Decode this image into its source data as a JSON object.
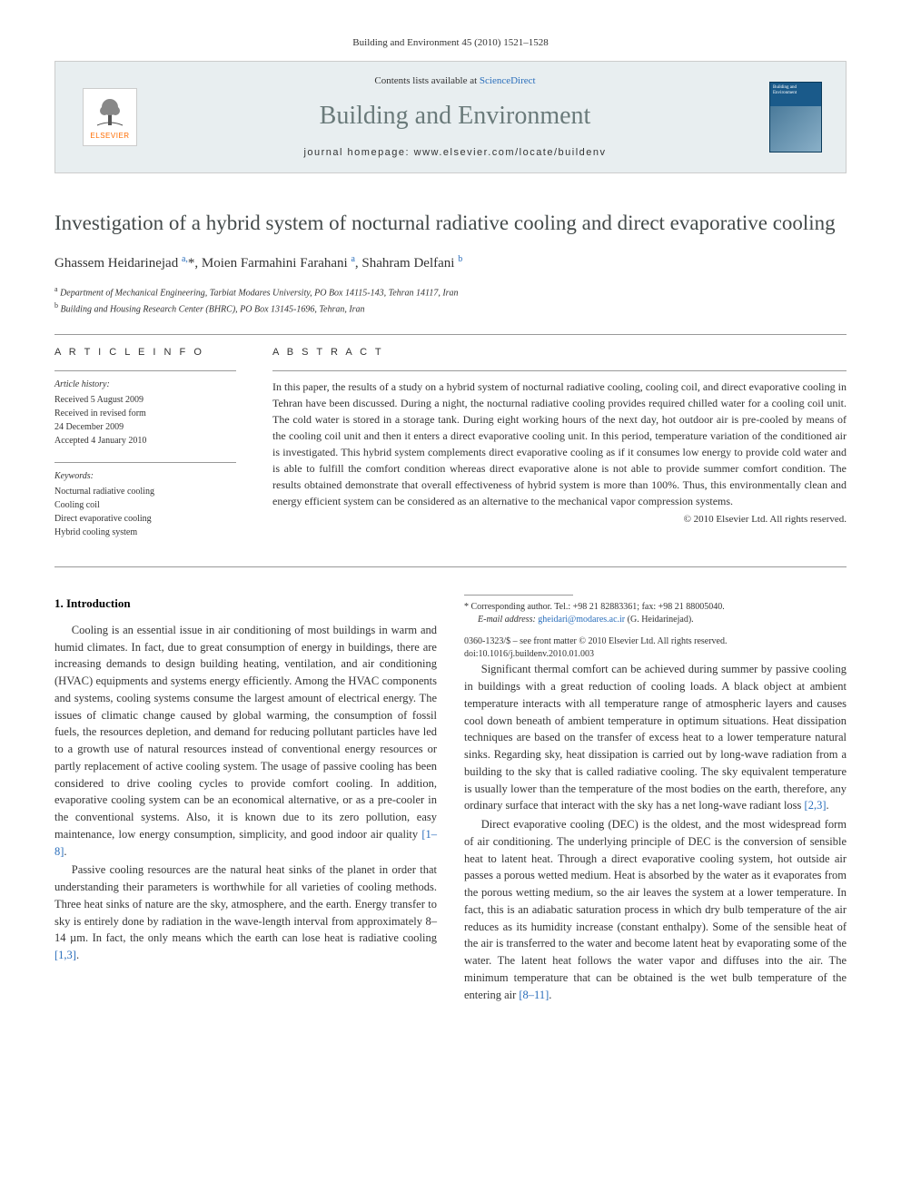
{
  "header_line": "Building and Environment 45 (2010) 1521–1528",
  "banner": {
    "contents_prefix": "Contents lists available at ",
    "contents_link": "ScienceDirect",
    "journal_name": "Building and Environment",
    "homepage_prefix": "journal homepage: ",
    "homepage_url": "www.elsevier.com/locate/buildenv",
    "publisher": "ELSEVIER",
    "cover_title": "Building and Environment"
  },
  "title": "Investigation of a hybrid system of nocturnal radiative cooling and direct evaporative cooling",
  "authors_html": "Ghassem Heidarinejad <sup>a,</sup>*, Moien Farmahini Farahani <sup>a</sup>, Shahram Delfani <sup>b</sup>",
  "affiliations": [
    {
      "sup": "a",
      "text": "Department of Mechanical Engineering, Tarbiat Modares University, PO Box 14115-143, Tehran 14117, Iran"
    },
    {
      "sup": "b",
      "text": "Building and Housing Research Center (BHRC), PO Box 13145-1696, Tehran, Iran"
    }
  ],
  "article_info": {
    "heading": "A R T I C L E   I N F O",
    "history_label": "Article history:",
    "history": [
      "Received 5 August 2009",
      "Received in revised form",
      "24 December 2009",
      "Accepted 4 January 2010"
    ],
    "keywords_label": "Keywords:",
    "keywords": [
      "Nocturnal radiative cooling",
      "Cooling coil",
      "Direct evaporative cooling",
      "Hybrid cooling system"
    ]
  },
  "abstract": {
    "heading": "A B S T R A C T",
    "text": "In this paper, the results of a study on a hybrid system of nocturnal radiative cooling, cooling coil, and direct evaporative cooling in Tehran have been discussed. During a night, the nocturnal radiative cooling provides required chilled water for a cooling coil unit. The cold water is stored in a storage tank. During eight working hours of the next day, hot outdoor air is pre-cooled by means of the cooling coil unit and then it enters a direct evaporative cooling unit. In this period, temperature variation of the conditioned air is investigated. This hybrid system complements direct evaporative cooling as if it consumes low energy to provide cold water and is able to fulfill the comfort condition whereas direct evaporative alone is not able to provide summer comfort condition. The results obtained demonstrate that overall effectiveness of hybrid system is more than 100%. Thus, this environmentally clean and energy efficient system can be considered as an alternative to the mechanical vapor compression systems.",
    "copyright": "© 2010 Elsevier Ltd. All rights reserved."
  },
  "body": {
    "section1_heading": "1. Introduction",
    "p1": "Cooling is an essential issue in air conditioning of most buildings in warm and humid climates. In fact, due to great consumption of energy in buildings, there are increasing demands to design building heating, ventilation, and air conditioning (HVAC) equipments and systems energy efficiently. Among the HVAC components and systems, cooling systems consume the largest amount of electrical energy. The issues of climatic change caused by global warming, the consumption of fossil fuels, the resources depletion, and demand for reducing pollutant particles have led to a growth use of natural resources instead of conventional energy resources or partly replacement of active cooling system. The usage of passive cooling has been considered to drive cooling cycles to provide comfort cooling. In addition, evaporative cooling system can be an economical alternative, or as a pre-cooler in the conventional systems. Also, it is known due to its zero pollution, easy maintenance, low energy consumption, simplicity, and good indoor air quality ",
    "p1_cite": "[1–8]",
    "p1_end": ".",
    "p2": "Passive cooling resources are the natural heat sinks of the planet in order that understanding their parameters is worthwhile for all varieties of cooling methods. Three heat sinks of nature are the sky, atmosphere, and the earth. Energy transfer to sky is entirely done by radiation in the wave-length interval from approximately 8–14 µm. In fact, the only means which the earth can lose heat is radiative cooling ",
    "p2_cite": "[1,3]",
    "p2_end": ".",
    "p3": "Significant thermal comfort can be achieved during summer by passive cooling in buildings with a great reduction of cooling loads. A black object at ambient temperature interacts with all temperature range of atmospheric layers and causes cool down beneath of ambient temperature in optimum situations. Heat dissipation techniques are based on the transfer of excess heat to a lower temperature natural sinks. Regarding sky, heat dissipation is carried out by long-wave radiation from a building to the sky that is called radiative cooling. The sky equivalent temperature is usually lower than the temperature of the most bodies on the earth, therefore, any ordinary surface that interact with the sky has a net long-wave radiant loss ",
    "p3_cite": "[2,3]",
    "p3_end": ".",
    "p4": "Direct evaporative cooling (DEC) is the oldest, and the most widespread form of air conditioning. The underlying principle of DEC is the conversion of sensible heat to latent heat. Through a direct evaporative cooling system, hot outside air passes a porous wetted medium. Heat is absorbed by the water as it evaporates from the porous wetting medium, so the air leaves the system at a lower temperature. In fact, this is an adiabatic saturation process in which dry bulb temperature of the air reduces as its humidity increase (constant enthalpy). Some of the sensible heat of the air is transferred to the water and become latent heat by evaporating some of the water. The latent heat follows the water vapor and diffuses into the air. The minimum temperature that can be obtained is the wet bulb temperature of the entering air ",
    "p4_cite": "[8–11]",
    "p4_end": "."
  },
  "footnote": {
    "corr": "* Corresponding author. Tel.: +98 21 82883361; fax: +98 21 88005040.",
    "email_label": "E-mail address:",
    "email": "gheidari@modares.ac.ir",
    "email_who": "(G. Heidarinejad)."
  },
  "footer": {
    "line1": "0360-1323/$ – see front matter © 2010 Elsevier Ltd. All rights reserved.",
    "line2": "doi:10.1016/j.buildenv.2010.01.003"
  },
  "colors": {
    "link": "#2a6ebb",
    "title_gray": "#434a4a",
    "journal_gray": "#6a7a7a",
    "elsevier_orange": "#ff6c00"
  }
}
